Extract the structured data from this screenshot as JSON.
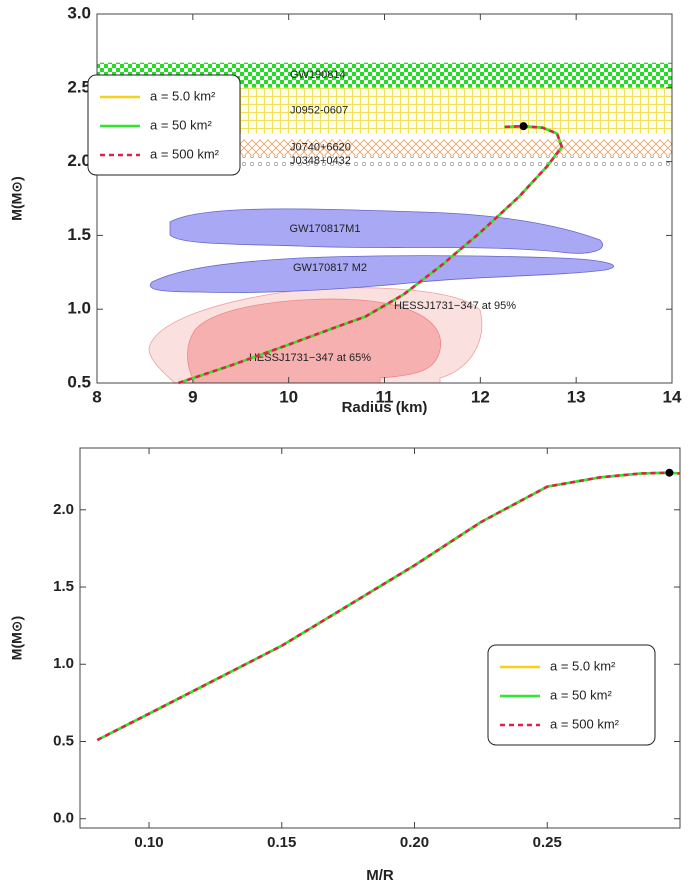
{
  "chart_data": [
    {
      "type": "line",
      "x_label": "Radius (km)",
      "y_label": "M(M⊙)",
      "xlim": [
        8,
        14
      ],
      "xticks": [
        8,
        9,
        10,
        11,
        12,
        13,
        14
      ],
      "ylim": [
        0.5,
        3.0
      ],
      "yticks": [
        0.5,
        {
          "value": 1.0,
          "label": "1.0"
        },
        1.5,
        {
          "value": 2.0,
          "label": "2.0"
        },
        2.5,
        {
          "value": 3.0,
          "label": "3.0"
        }
      ],
      "x": [
        8.85,
        9.4,
        10.0,
        10.5,
        10.8,
        11.2,
        11.6,
        12.0,
        12.4,
        12.7,
        12.85,
        12.8,
        12.65,
        12.45,
        12.25
      ],
      "series": [
        {
          "name": "a = 5.0 km²",
          "color": "#f2d21a",
          "values": [
            0.5,
            0.62,
            0.76,
            0.88,
            0.95,
            1.1,
            1.3,
            1.52,
            1.76,
            1.97,
            2.1,
            2.19,
            2.23,
            2.24,
            2.235
          ]
        },
        {
          "name": "a = 50 km²",
          "color": "#2ee62e",
          "values": [
            0.5,
            0.62,
            0.76,
            0.88,
            0.95,
            1.1,
            1.3,
            1.52,
            1.76,
            1.97,
            2.1,
            2.19,
            2.23,
            2.24,
            2.235
          ]
        },
        {
          "name": "a = 500 km²",
          "color": "#e0204a",
          "dashed": true,
          "values": [
            0.5,
            0.62,
            0.76,
            0.88,
            0.95,
            1.1,
            1.3,
            1.52,
            1.76,
            1.97,
            2.1,
            2.19,
            2.23,
            2.24,
            2.235
          ]
        }
      ],
      "marker": {
        "x": 12.45,
        "y": 2.24
      },
      "bands": [
        {
          "name": "GW190814",
          "range": [
            2.5,
            2.67
          ],
          "color": "#22dd22",
          "hatch": "checker"
        },
        {
          "name": "J0952-0607",
          "range": [
            2.19,
            2.5
          ],
          "color": "#f0e060",
          "hatch": "grid"
        },
        {
          "name": "J0740+6620",
          "range": [
            2.04,
            2.15
          ],
          "color": "#f0a060",
          "hatch": "cross"
        },
        {
          "name": "J0348+0432",
          "range": [
            1.97,
            2.04
          ],
          "color": "#999999",
          "hatch": "dots"
        }
      ],
      "regions": [
        "GW170817M1",
        "GW170817 M2",
        "HESSJ1731−347 at 95%",
        "HESSJ1731−347 at 65%"
      ],
      "legend": "upper left"
    },
    {
      "type": "line",
      "x_label": "M/R",
      "y_label": "M(M⊙)",
      "xlim": [
        0.074,
        0.3
      ],
      "xticks": [
        {
          "value": 0.1,
          "label": "0.10"
        },
        0.15,
        {
          "value": 0.2,
          "label": "0.20"
        },
        0.25
      ],
      "ylim": [
        -0.06,
        2.4
      ],
      "yticks": [
        {
          "value": 0.0,
          "label": "0.0"
        },
        0.5,
        {
          "value": 1.0,
          "label": "1.0"
        },
        1.5,
        {
          "value": 2.0,
          "label": "2.0"
        }
      ],
      "x": [
        0.0805,
        0.1,
        0.125,
        0.15,
        0.175,
        0.2,
        0.225,
        0.25,
        0.27,
        0.285,
        0.296,
        0.3
      ],
      "series": [
        {
          "name": "a = 5.0 km²",
          "color": "#f2d21a",
          "values": [
            0.51,
            0.68,
            0.9,
            1.12,
            1.38,
            1.64,
            1.92,
            2.15,
            2.21,
            2.235,
            2.24,
            2.235
          ]
        },
        {
          "name": "a = 50 km²",
          "color": "#2ee62e",
          "values": [
            0.51,
            0.68,
            0.9,
            1.12,
            1.38,
            1.64,
            1.92,
            2.15,
            2.21,
            2.235,
            2.24,
            2.235
          ]
        },
        {
          "name": "a = 500 km²",
          "color": "#e0204a",
          "dashed": true,
          "values": [
            0.51,
            0.68,
            0.9,
            1.12,
            1.38,
            1.64,
            1.92,
            2.15,
            2.21,
            2.235,
            2.24,
            2.235
          ]
        }
      ],
      "marker": {
        "x": 0.296,
        "y": 2.24
      },
      "legend": "center right"
    }
  ]
}
